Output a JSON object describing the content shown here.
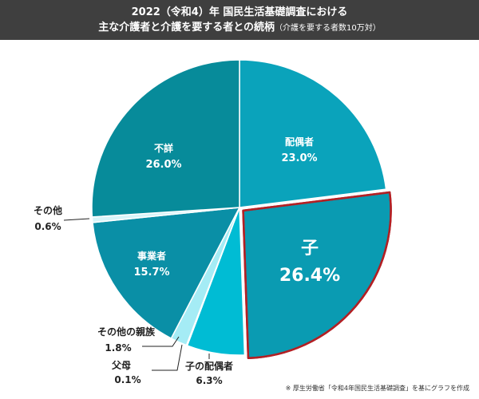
{
  "title": {
    "line1": "2022（令和4）年 国民生活基礎調査における",
    "line2": "主な介護者と介護を要する者との続柄",
    "subtitle": "（介護を要する者数10万対）"
  },
  "chart_data": {
    "type": "pie",
    "start_angle": "12 o'clock",
    "direction": "clockwise",
    "highlighted": "子",
    "slices": [
      {
        "name": "配偶者",
        "value": 23.0,
        "label": "23.0%",
        "color": "#0aa3bb"
      },
      {
        "name": "子",
        "value": 26.4,
        "label": "26.4%",
        "color": "#0a9bb2"
      },
      {
        "name": "子の配偶者",
        "value": 6.3,
        "label": "6.3%",
        "color": "#00bcd4"
      },
      {
        "name": "父母",
        "value": 0.1,
        "label": "0.1%",
        "color": "#4dd0e1"
      },
      {
        "name": "その他の親族",
        "value": 1.8,
        "label": "1.8%",
        "color": "#a5ecf5"
      },
      {
        "name": "事業者",
        "value": 15.7,
        "label": "15.7%",
        "color": "#0a8fa6"
      },
      {
        "name": "その他",
        "value": 0.6,
        "label": "0.6%",
        "color": "#d8f5f9"
      },
      {
        "name": "不詳",
        "value": 26.0,
        "label": "26.0%",
        "color": "#078b9a"
      }
    ],
    "highlight_border": "#b22024"
  },
  "footnote": "※ 厚生労働省「令和4年国民生活基礎調査」を基にグラフを作成"
}
